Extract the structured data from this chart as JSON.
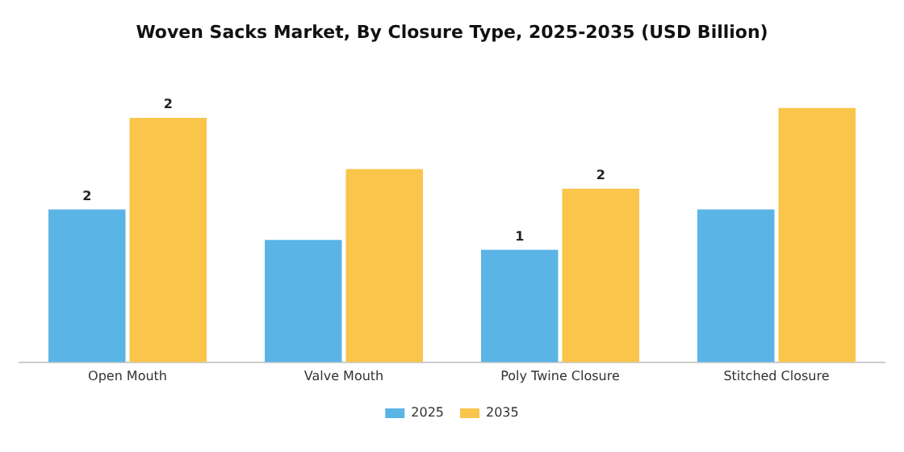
{
  "chart_data": {
    "type": "bar",
    "title": "Woven Sacks Market, By Closure Type, 2025-2035 (USD Billion)",
    "categories": [
      "Open Mouth",
      "Valve Mouth",
      "Poly Twine Closure",
      "Stitched Closure"
    ],
    "tick_labels": "x",
    "legend": "bottom",
    "grid": false,
    "series": [
      {
        "name": "2025",
        "color": "#5ab4e5",
        "values": [
          1.55,
          1.24,
          1.14,
          1.55
        ],
        "value_labels": [
          "2",
          null,
          "1",
          null
        ]
      },
      {
        "name": "2035",
        "color": "#f9c54a",
        "values": [
          2.48,
          1.96,
          1.76,
          2.58
        ],
        "value_labels": [
          "2",
          null,
          "2",
          null
        ]
      }
    ]
  }
}
